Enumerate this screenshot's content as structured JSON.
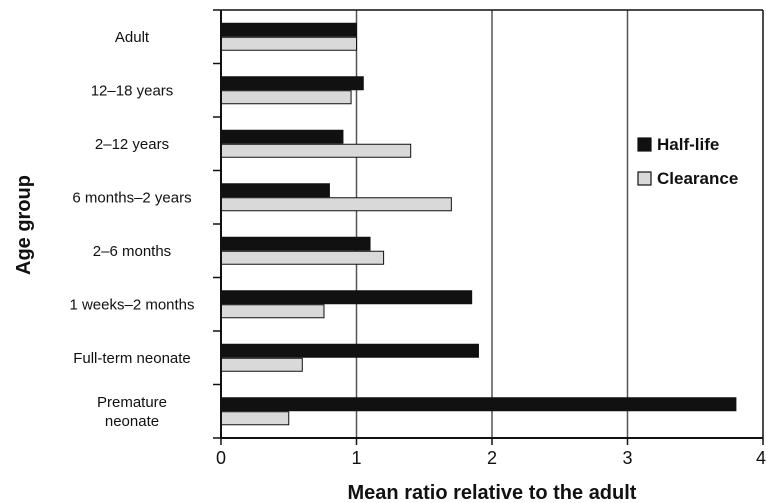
{
  "chart_data": {
    "type": "bar",
    "orientation": "horizontal",
    "categories": [
      [
        "Adult"
      ],
      [
        "12–18 years"
      ],
      [
        "2–12 years"
      ],
      [
        "6 months–2 years"
      ],
      [
        "2–6 months"
      ],
      [
        "1 weeks–2 months"
      ],
      [
        "Full-term neonate"
      ],
      [
        "Premature",
        "neonate"
      ]
    ],
    "series": [
      {
        "name": "Half-life",
        "color": "#111111",
        "values": [
          1.0,
          1.05,
          0.9,
          0.8,
          1.1,
          1.85,
          1.9,
          3.8
        ]
      },
      {
        "name": "Clearance",
        "color": "#d9d9d9",
        "values": [
          1.0,
          0.96,
          1.4,
          1.7,
          1.2,
          0.76,
          0.6,
          0.5
        ]
      }
    ],
    "xlabel": "Mean ratio relative to the adult",
    "ylabel": "Age group",
    "xlim": [
      0,
      4
    ],
    "xticks": [
      "0",
      "1",
      "2",
      "3",
      "4"
    ],
    "gridlines": "vertical",
    "legend_position": "right"
  }
}
